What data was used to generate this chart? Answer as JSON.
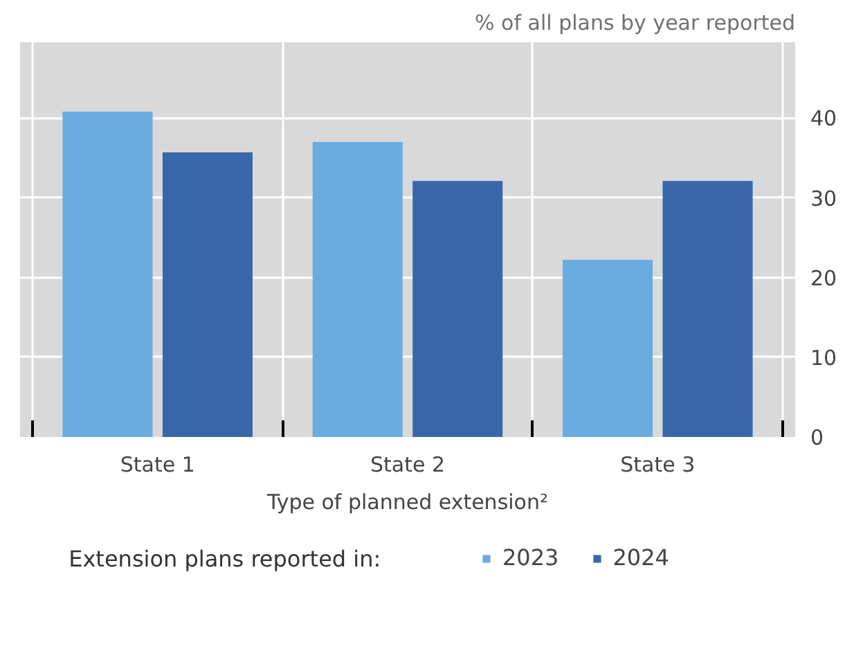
{
  "chart_data": {
    "type": "bar",
    "categories": [
      "State 1",
      "State 2",
      "State 3"
    ],
    "series": [
      {
        "name": "2023",
        "color": "#6aabe0",
        "values": [
          40.8,
          37.0,
          22.2
        ]
      },
      {
        "name": "2024",
        "color": "#3868ab",
        "values": [
          35.7,
          32.1,
          32.1
        ]
      }
    ],
    "ylabel": "% of all plans by year reported",
    "xlabel": "Type of planned extension²",
    "legend_title": "Extension plans reported in:",
    "ylim": [
      0,
      49.5
    ],
    "yticks": [
      0,
      10,
      20,
      30,
      40
    ],
    "grid": true,
    "legend": "bottom"
  }
}
